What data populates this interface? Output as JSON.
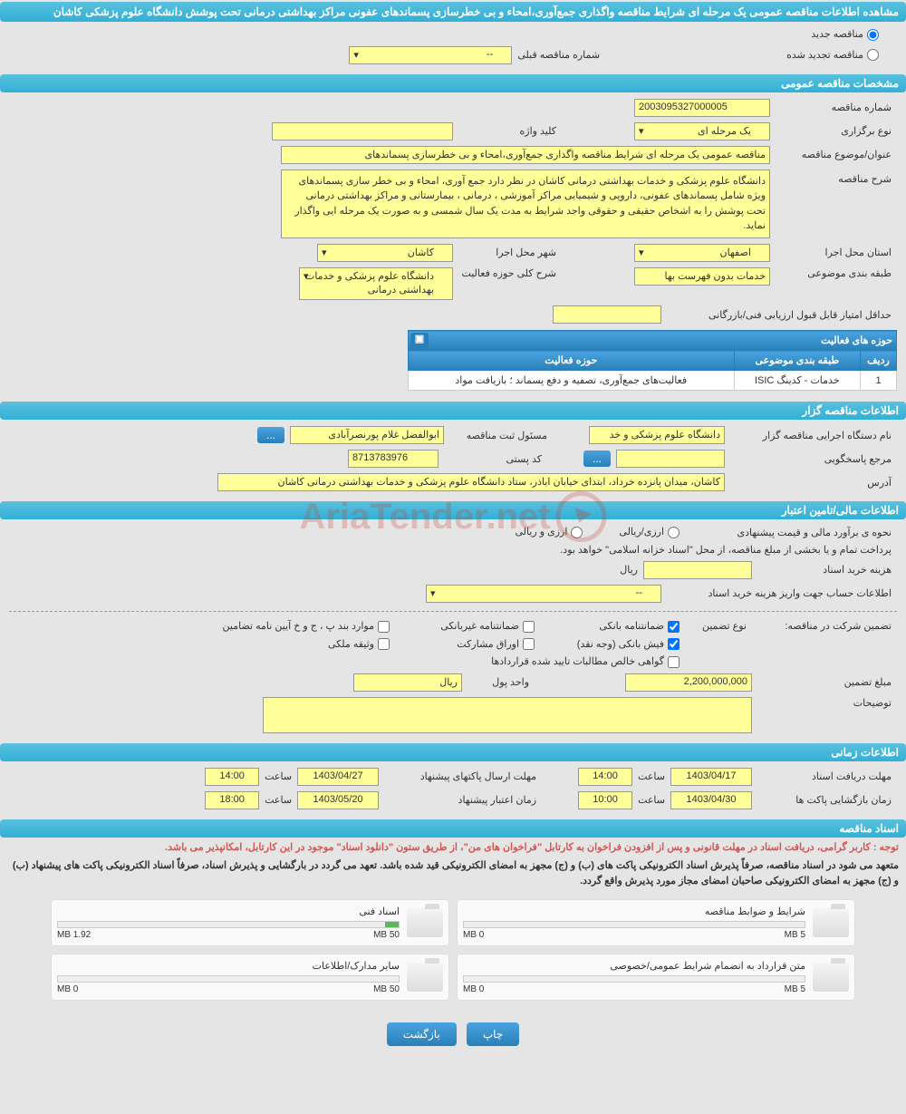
{
  "page_title": "مشاهده اطلاعات مناقصه عمومی یک مرحله ای شرایط مناقصه واگذاری جمع‌آوری،امحاء و بی خطرسازی پسماندهای عفونی مراکز بهداشتی درمانی تحت پوشش دانشگاه علوم پزشکی کاشان",
  "radios": {
    "new_tender": "مناقصه جدید",
    "renewed_tender": "مناقصه تجدید شده",
    "prev_tender_label": "شماره مناقصه قبلی",
    "prev_tender_value": "--"
  },
  "sections": {
    "general": "مشخصات مناقصه عمومی",
    "organizer": "اطلاعات مناقصه گزار",
    "financial": "اطلاعات مالی/تامین اعتبار",
    "timing": "اطلاعات زمانی",
    "docs": "اسناد مناقصه",
    "activity": "حوزه های فعالیت"
  },
  "general": {
    "tender_no_label": "شماره مناقصه",
    "tender_no": "2003095327000005",
    "type_label": "نوع برگزاری",
    "type_value": "یک مرحله ای",
    "keyword_label": "کلید واژه",
    "keyword_value": "",
    "subject_label": "عنوان/موضوع مناقصه",
    "subject_value": "مناقصه عمومی یک مرحله ای شرایط مناقصه واگذاری جمع‌آوری،امحاء و بی خطرسازی پسماندهای",
    "desc_label": "شرح مناقصه",
    "desc_value": "دانشگاه علوم پزشکی و خدمات بهداشتی درمانی کاشان در نظر دارد جمع آوری، امحاء و بی خطر سازی پسماندهای ویژه شامل پسماندهای عفونی، دارویی و شیمیایی مراکز آموزشی ، درمانی ، بیمارستانی و مراکز بهداشتی درمانی تحت پوشش را به اشخاص حقیقی و حقوقی واجد شرایط به مدت یک سال شمسی و به صورت یک مرحله ایی واگذار نماید.",
    "province_label": "استان محل اجرا",
    "province_value": "اصفهان",
    "city_label": "شهر محل اجرا",
    "city_value": "کاشان",
    "category_label": "طبقه بندی موضوعی",
    "category_value": "خدمات بدون فهرست بها",
    "scope_label": "شرح کلی حوزه فعالیت",
    "scope_value": "دانشگاه علوم پزشکی و خدمات بهداشتی درمانی",
    "min_score_label": "حداقل امتیاز قابل قبول ارزیابی فنی/بازرگانی",
    "min_score_value": ""
  },
  "activity_table": {
    "col_row": "ردیف",
    "col_cat": "طبقه بندی موضوعی",
    "col_scope": "حوزه فعالیت",
    "rows": [
      {
        "n": "1",
        "cat": "خدمات - کدینگ ISIC",
        "scope": "فعالیت‌های جمع‌آوری، تصفیه و دفع پسماند ؛ بازیافت مواد"
      }
    ]
  },
  "organizer": {
    "exec_label": "نام دستگاه اجرایی مناقصه گزار",
    "exec_value": "دانشگاه علوم پزشکی و خد",
    "registrar_label": "مسئول ثبت مناقصه",
    "registrar_value": "ابوالفضل غلام پورنصرآبادی",
    "responder_label": "مرجع پاسخگویی",
    "responder_value": "",
    "postal_label": "کد پستی",
    "postal_value": "8713783976",
    "address_label": "آدرس",
    "address_value": "کاشان، میدان پانزده خرداد، ابتدای خیابان اباذر، ستاد دانشگاه علوم پزشکی و خدمات بهداشتی درمانی کاشان"
  },
  "financial": {
    "est_label": "نحوه ی برآورد مالی و قیمت پیشنهادی",
    "opt_fx": "ارزی/ریالی",
    "opt_fxr": "ارزی و ریالی",
    "treasury_note": "پرداخت تمام و یا بخشی از مبلغ مناقصه، از محل \"اسناد خزانه اسلامی\" خواهد بود.",
    "doc_fee_label": "هزینه خرید اسناد",
    "doc_fee_unit": "ریال",
    "doc_fee_value": "",
    "acct_label": "اطلاعات حساب جهت واریز هزینه خرید اسناد",
    "acct_value": "--",
    "guarantee_label": "تضمین شرکت در مناقصه:",
    "g_type_label": "نوع تضمین",
    "g_bank": "ضمانتنامه بانکی",
    "g_nonbank": "ضمانتنامه غیربانکی",
    "g_bylaw": "موارد بند پ ، ج و خ آیین نامه تضامین",
    "g_cash": "فیش بانکی (وجه نقد)",
    "g_stocks": "اوراق مشارکت",
    "g_prop": "وثیقه ملکی",
    "g_cert": "گواهی خالص مطالبات تایید شده قراردادها",
    "g_amount_label": "مبلغ تضمین",
    "g_amount_value": "2,200,000,000",
    "g_unit_label": "واحد پول",
    "g_unit_value": "ریال",
    "notes_label": "توضیحات",
    "notes_value": ""
  },
  "timing": {
    "receive_label": "مهلت دریافت اسناد",
    "receive_date": "1403/04/17",
    "receive_time": "14:00",
    "send_label": "مهلت ارسال پاکتهای پیشنهاد",
    "send_date": "1403/04/27",
    "send_time": "14:00",
    "open_label": "زمان بازگشایی پاکت ها",
    "open_date": "1403/04/30",
    "open_time": "10:00",
    "valid_label": "زمان اعتبار پیشنهاد",
    "valid_date": "1403/05/20",
    "valid_time": "18:00",
    "time_label": "ساعت"
  },
  "docs": {
    "notice": "توجه : کاربر گرامی، دریافت اسناد در مهلت قانونی و پس از افزودن فراخوان به کارتابل \"فراخوان های من\"، از طریق ستون \"دانلود اسناد\" موجود در این کارتابل، امکانپذیر می باشد.",
    "bold1": "متعهد می شود در اسناد مناقصه، صرفاً پذیرش اسناد الکترونیکی پاکت های (ب) و (ج) مجهز به امضای الکترونیکی قید شده باشد. تعهد می گردد در بارگشایی و پذیرش اسناد، صرفاً اسناد الکترونیکی پاکت های پیشنهاد (ب) و (ج) مجهز به امضای الکترونیکی صاحبان امضای مجاز مورد پذیرش واقع گردد.",
    "cards": [
      {
        "title": "شرایط و ضوابط مناقصه",
        "used": "0 MB",
        "max": "5 MB",
        "fill": 0
      },
      {
        "title": "اسناد فنی",
        "used": "1.92 MB",
        "max": "50 MB",
        "fill": 4
      },
      {
        "title": "متن قرارداد به انضمام شرایط عمومی/خصوصی",
        "used": "0 MB",
        "max": "5 MB",
        "fill": 0
      },
      {
        "title": "سایر مدارک/اطلاعات",
        "used": "0 MB",
        "max": "50 MB",
        "fill": 0
      }
    ]
  },
  "buttons": {
    "print": "چاپ",
    "back": "بازگشت",
    "dots": "..."
  },
  "watermark": "AriaTender.net"
}
